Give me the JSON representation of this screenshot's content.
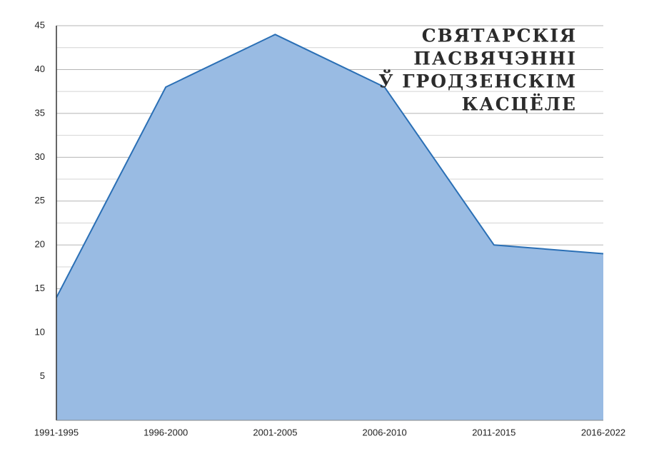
{
  "chart_data": {
    "type": "area",
    "title": [
      "СВЯТАРСКІЯ",
      "ПАСВЯЧЭННІ",
      "Ў ГРОДЗЕНСКІМ",
      "КАСЦЁЛЕ"
    ],
    "categories": [
      "1991-1995",
      "1996-2000",
      "2001-2005",
      "2006-2010",
      "2011-2015",
      "2016-2022"
    ],
    "values": [
      14,
      38,
      44,
      38,
      20,
      19
    ],
    "color": "#99bbe3",
    "line_color": "#2a6fb5",
    "ylim": [
      0,
      45
    ],
    "yticks": [
      5,
      10,
      15,
      20,
      25,
      30,
      35,
      40,
      45
    ],
    "minor_yticks": [
      2.5,
      7.5,
      12.5,
      17.5,
      22.5,
      27.5,
      32.5,
      37.5,
      42.5
    ],
    "grid": true
  }
}
